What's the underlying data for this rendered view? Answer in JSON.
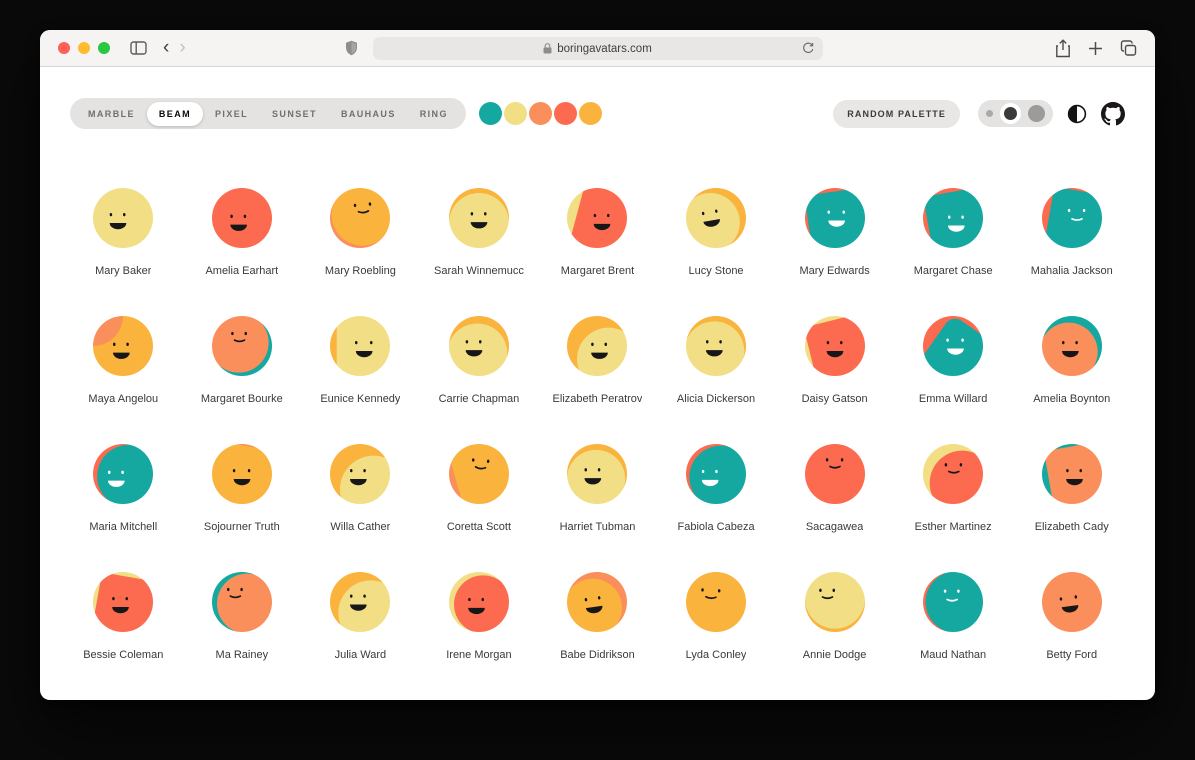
{
  "browser": {
    "url": "boringavatars.com",
    "traffic_lights": [
      "#FF5F57",
      "#FEBC2E",
      "#28C840"
    ],
    "back_glyph": "‹",
    "forward_glyph": "›"
  },
  "controls": {
    "style_tabs": [
      {
        "label": "MARBLE",
        "active": false
      },
      {
        "label": "BEAM",
        "active": true
      },
      {
        "label": "PIXEL",
        "active": false
      },
      {
        "label": "SUNSET",
        "active": false
      },
      {
        "label": "BAUHAUS",
        "active": false
      },
      {
        "label": "RING",
        "active": false
      }
    ],
    "palette": [
      "#14A8A0",
      "#F2DE85",
      "#FA8F5B",
      "#FC6B4F",
      "#FAB33C"
    ],
    "random_palette_label": "RANDOM PALETTE",
    "size_options": [
      "small",
      "medium",
      "large"
    ],
    "size_selected": "medium"
  },
  "face_colors": {
    "dark": "#171717",
    "light": "#FFFFFF"
  },
  "avatars": [
    {
      "name": "Mary Baker",
      "bg": "#F2DE85",
      "wp": "#F2DE85",
      "circle": true,
      "wt": [
        0,
        0
      ],
      "wrot": 0,
      "ws": 1,
      "face": "#171717",
      "ft": [
        -3,
        1
      ],
      "frot": 0,
      "open": true,
      "es": 1,
      "ms": 1
    },
    {
      "name": "Amelia Earhart",
      "bg": "#FC6B4F",
      "wp": "#FC6B4F",
      "circle": true,
      "wt": [
        0,
        0
      ],
      "wrot": 0,
      "ws": 1,
      "face": "#171717",
      "ft": [
        -2,
        2
      ],
      "frot": 0,
      "open": true,
      "es": 1,
      "ms": 1
    },
    {
      "name": "Mary Roebling",
      "bg": "#FA8F5B",
      "wp": "#FAB33C",
      "circle": true,
      "wt": [
        1,
        -2.5
      ],
      "wrot": 0,
      "ws": 1.03,
      "face": "#171717",
      "ft": [
        2,
        -5
      ],
      "frot": -5,
      "open": false,
      "es": 1.5,
      "ms": 0
    },
    {
      "name": "Sarah Winnemucc",
      "bg": "#FAB33C",
      "wp": "#F2DE85",
      "circle": true,
      "wt": [
        0,
        3
      ],
      "wrot": 0,
      "ws": 1,
      "face": "#171717",
      "ft": [
        0,
        0.5
      ],
      "frot": 0,
      "open": true,
      "es": 1,
      "ms": 1
    },
    {
      "name": "Margaret Brent",
      "bg": "#F2DE85",
      "wp": "#FC6B4F",
      "circle": false,
      "wt": [
        6,
        0
      ],
      "wrot": 15,
      "ws": 1.1,
      "face": "#171717",
      "ft": [
        3,
        1.5
      ],
      "frot": 0,
      "open": true,
      "es": 1,
      "ms": 1
    },
    {
      "name": "Lucy Stone",
      "bg": "#FAB33C",
      "wp": "#F2DE85",
      "circle": true,
      "wt": [
        -3,
        3
      ],
      "wrot": 0,
      "ws": 0.98,
      "face": "#171717",
      "ft": [
        -3,
        -0.5
      ],
      "frot": -10,
      "open": true,
      "es": 1,
      "ms": 1
    },
    {
      "name": "Mary Edwards",
      "bg": "#FC6B4F",
      "wp": "#14A8A0",
      "circle": false,
      "wt": [
        2,
        2
      ],
      "wrot": -8,
      "ws": 1.08,
      "face": "#FFFFFF",
      "ft": [
        1,
        -0.5
      ],
      "frot": 0,
      "open": true,
      "es": 1.5,
      "ms": 1
    },
    {
      "name": "Margaret Chase",
      "bg": "#FC6B4F",
      "wp": "#14A8A0",
      "circle": false,
      "wt": [
        3,
        2
      ],
      "wrot": -10,
      "ws": 1.06,
      "face": "#FFFFFF",
      "ft": [
        2,
        2.5
      ],
      "frot": 0,
      "open": true,
      "es": 1,
      "ms": 1
    },
    {
      "name": "Mahalia Jackson",
      "bg": "#FC6B4F",
      "wp": "#14A8A0",
      "circle": false,
      "wt": [
        4,
        2
      ],
      "wrot": 10,
      "ws": 1.06,
      "face": "#FFFFFF",
      "ft": [
        3,
        -1.5
      ],
      "frot": 0,
      "open": false,
      "es": 1.5,
      "ms": 1
    },
    {
      "name": "Maya Angelou",
      "bg": "#FAB33C",
      "wp": "#FA8F5B",
      "circle": true,
      "wt": [
        -18,
        -18
      ],
      "wrot": 0,
      "ws": 1,
      "face": "#171717",
      "ft": [
        -1,
        2
      ],
      "frot": 0,
      "open": true,
      "es": 1,
      "ms": 1
    },
    {
      "name": "Margaret Bourke",
      "bg": "#14A8A0",
      "wp": "#FA8F5B",
      "circle": true,
      "wt": [
        -2,
        -2
      ],
      "wrot": 0,
      "ws": 1,
      "face": "#171717",
      "ft": [
        -1.5,
        -4.5
      ],
      "frot": 0,
      "open": false,
      "es": 1,
      "ms": 0
    },
    {
      "name": "Eunice Kennedy",
      "bg": "#FAB33C",
      "wp": "#F2DE85",
      "circle": false,
      "wt": [
        4,
        0
      ],
      "wrot": 0,
      "ws": 1.05,
      "face": "#171717",
      "ft": [
        2.5,
        1
      ],
      "frot": 0,
      "open": true,
      "es": 1.5,
      "ms": 1
    },
    {
      "name": "Carrie Chapman",
      "bg": "#FAB33C",
      "wp": "#F2DE85",
      "circle": true,
      "wt": [
        -1,
        4.5
      ],
      "wrot": 0,
      "ws": 1,
      "face": "#171717",
      "ft": [
        -3,
        0.5
      ],
      "frot": 0,
      "open": true,
      "es": 1,
      "ms": 1
    },
    {
      "name": "Elizabeth Peratrov",
      "bg": "#FAB33C",
      "wp": "#F2DE85",
      "circle": true,
      "wt": [
        6,
        7
      ],
      "wrot": 0,
      "ws": 1.05,
      "face": "#171717",
      "ft": [
        1.5,
        2
      ],
      "frot": 0,
      "open": true,
      "es": 1,
      "ms": 1
    },
    {
      "name": "Alicia Dickerson",
      "bg": "#FAB33C",
      "wp": "#F2DE85",
      "circle": true,
      "wt": [
        -1,
        3.2
      ],
      "wrot": 0,
      "ws": 1,
      "face": "#171717",
      "ft": [
        -1,
        0.5
      ],
      "frot": 0,
      "open": true,
      "es": 1,
      "ms": 1
    },
    {
      "name": "Daisy Gatson",
      "bg": "#F2DE85",
      "wp": "#FC6B4F",
      "circle": false,
      "wt": [
        3,
        2
      ],
      "wrot": -14,
      "ws": 1.05,
      "face": "#171717",
      "ft": [
        0,
        1
      ],
      "frot": 0,
      "open": true,
      "es": 1,
      "ms": 1
    },
    {
      "name": "Emma Willard",
      "bg": "#FC6B4F",
      "wp": "#14A8A0",
      "circle": false,
      "wt": [
        4,
        6
      ],
      "wrot": 35,
      "ws": 1.15,
      "face": "#FFFFFF",
      "ft": [
        1.5,
        -0.5
      ],
      "frot": 0,
      "open": true,
      "es": 1.5,
      "ms": 1
    },
    {
      "name": "Amelia Boynton",
      "bg": "#14A8A0",
      "wp": "#FA8F5B",
      "circle": true,
      "wt": [
        -1.5,
        4
      ],
      "wrot": 0,
      "ws": 0.97,
      "face": "#171717",
      "ft": [
        -1,
        1
      ],
      "frot": 0,
      "open": true,
      "es": 1,
      "ms": 1
    },
    {
      "name": "Maria Mitchell",
      "bg": "#FC6B4F",
      "wp": "#14A8A0",
      "circle": true,
      "wt": [
        2.5,
        0.5
      ],
      "wrot": 0,
      "ws": 1.05,
      "face": "#FFFFFF",
      "ft": [
        -4,
        2
      ],
      "frot": 0,
      "open": true,
      "es": 1,
      "ms": 1
    },
    {
      "name": "Sojourner Truth",
      "bg": "#FA8F5B",
      "wp": "#FAB33C",
      "circle": false,
      "wt": [
        0,
        1
      ],
      "wrot": 10,
      "ws": 1.02,
      "face": "#171717",
      "ft": [
        0,
        1
      ],
      "frot": 0,
      "open": true,
      "es": 1.5,
      "ms": 1
    },
    {
      "name": "Willa Cather",
      "bg": "#FAB33C",
      "wp": "#F2DE85",
      "circle": true,
      "wt": [
        6,
        7
      ],
      "wrot": 0,
      "ws": 1.12,
      "face": "#171717",
      "ft": [
        -1,
        1
      ],
      "frot": 0,
      "open": true,
      "es": 1,
      "ms": 1
    },
    {
      "name": "Coretta Scott",
      "bg": "#FA8F5B",
      "wp": "#FAB33C",
      "circle": false,
      "wt": [
        3,
        -3
      ],
      "wrot": -16,
      "ws": 1.05,
      "face": "#171717",
      "ft": [
        1,
        -5
      ],
      "frot": 5,
      "open": false,
      "es": 1.5,
      "ms": 0
    },
    {
      "name": "Harriet Tubman",
      "bg": "#FAB33C",
      "wp": "#F2DE85",
      "circle": true,
      "wt": [
        0,
        3.5
      ],
      "wrot": 0,
      "ws": 0.97,
      "face": "#171717",
      "ft": [
        -2.5,
        0.5
      ],
      "frot": 0,
      "open": true,
      "es": 1,
      "ms": 1
    },
    {
      "name": "Fabiola Cabeza",
      "bg": "#FC6B4F",
      "wp": "#14A8A0",
      "circle": true,
      "wt": [
        2,
        1
      ],
      "wrot": 0,
      "ws": 1.05,
      "face": "#FFFFFF",
      "ft": [
        -3.5,
        1.5
      ],
      "frot": 0,
      "open": true,
      "es": 1,
      "ms": 1
    },
    {
      "name": "Sacagawea",
      "bg": "#FC6B4F",
      "wp": "#FC6B4F",
      "circle": true,
      "wt": [
        0,
        0
      ],
      "wrot": 0,
      "ws": 1,
      "face": "#171717",
      "ft": [
        0,
        -5.5
      ],
      "frot": 0,
      "open": false,
      "es": 1.5,
      "ms": 0
    },
    {
      "name": "Esther Martinez",
      "bg": "#F2DE85",
      "wp": "#FC6B4F",
      "circle": true,
      "wt": [
        4,
        4
      ],
      "wrot": 0,
      "ws": 1.08,
      "face": "#171717",
      "ft": [
        0.5,
        -2.5
      ],
      "frot": 0,
      "open": false,
      "es": 1.5,
      "ms": 0
    },
    {
      "name": "Elizabeth Cady",
      "bg": "#14A8A0",
      "wp": "#FA8F5B",
      "circle": false,
      "wt": [
        4,
        1
      ],
      "wrot": -10,
      "ws": 1.02,
      "face": "#171717",
      "ft": [
        1.5,
        1
      ],
      "frot": 0,
      "open": true,
      "es": 1,
      "ms": 1
    },
    {
      "name": "Bessie Coleman",
      "bg": "#F2DE85",
      "wp": "#FC6B4F",
      "circle": false,
      "wt": [
        2,
        3
      ],
      "wrot": 10,
      "ws": 1,
      "face": "#171717",
      "ft": [
        -1.5,
        1
      ],
      "frot": 0,
      "open": true,
      "es": 1,
      "ms": 1
    },
    {
      "name": "Ma Rainey",
      "bg": "#14A8A0",
      "wp": "#FA8F5B",
      "circle": true,
      "wt": [
        3,
        1
      ],
      "wrot": 0,
      "ws": 1,
      "face": "#171717",
      "ft": [
        -4,
        -4.5
      ],
      "frot": 0,
      "open": false,
      "es": 1,
      "ms": 0
    },
    {
      "name": "Julia Ward",
      "bg": "#FAB33C",
      "wp": "#F2DE85",
      "circle": true,
      "wt": [
        5,
        5
      ],
      "wrot": 0,
      "ws": 1.08,
      "face": "#171717",
      "ft": [
        -1,
        -0.5
      ],
      "frot": 0,
      "open": true,
      "es": 1,
      "ms": 1
    },
    {
      "name": "Irene Morgan",
      "bg": "#F2DE85",
      "wp": "#FC6B4F",
      "circle": true,
      "wt": [
        3,
        2
      ],
      "wrot": 0,
      "ws": 0.97,
      "face": "#171717",
      "ft": [
        -1.5,
        1.5
      ],
      "frot": 0,
      "open": true,
      "es": 1,
      "ms": 1
    },
    {
      "name": "Babe Didrikson",
      "bg": "#FA8F5B",
      "wp": "#FAB33C",
      "circle": true,
      "wt": [
        -2,
        4
      ],
      "wrot": 0,
      "ws": 0.97,
      "face": "#171717",
      "ft": [
        -2,
        1
      ],
      "frot": -8,
      "open": true,
      "es": 1,
      "ms": 1
    },
    {
      "name": "Lyda Conley",
      "bg": "#FAB33C",
      "wp": "#FAB33C",
      "circle": true,
      "wt": [
        0,
        0
      ],
      "wrot": 0,
      "ws": 1,
      "face": "#171717",
      "ft": [
        -3,
        -4
      ],
      "frot": 3,
      "open": false,
      "es": 2,
      "ms": 0
    },
    {
      "name": "Annie Dodge",
      "bg": "#FAB33C",
      "wp": "#F2DE85",
      "circle": true,
      "wt": [
        0,
        -2
      ],
      "wrot": 0,
      "ws": 1,
      "face": "#171717",
      "ft": [
        -4.5,
        -4
      ],
      "frot": 0,
      "open": false,
      "es": 1,
      "ms": 0
    },
    {
      "name": "Maud Nathan",
      "bg": "#FC6B4F",
      "wp": "#14A8A0",
      "circle": true,
      "wt": [
        1.5,
        -0.5
      ],
      "wrot": 0,
      "ws": 1.03,
      "face": "#FFFFFF",
      "ft": [
        -0.5,
        -3.5
      ],
      "frot": 0,
      "open": false,
      "es": 1,
      "ms": 1
    },
    {
      "name": "Betty Ford",
      "bg": "#FA8F5B",
      "wp": "#FA8F5B",
      "circle": true,
      "wt": [
        0,
        0
      ],
      "wrot": 0,
      "ws": 1,
      "face": "#171717",
      "ft": [
        -1.5,
        0.5
      ],
      "frot": -8,
      "open": true,
      "es": 1.5,
      "ms": 1
    }
  ]
}
